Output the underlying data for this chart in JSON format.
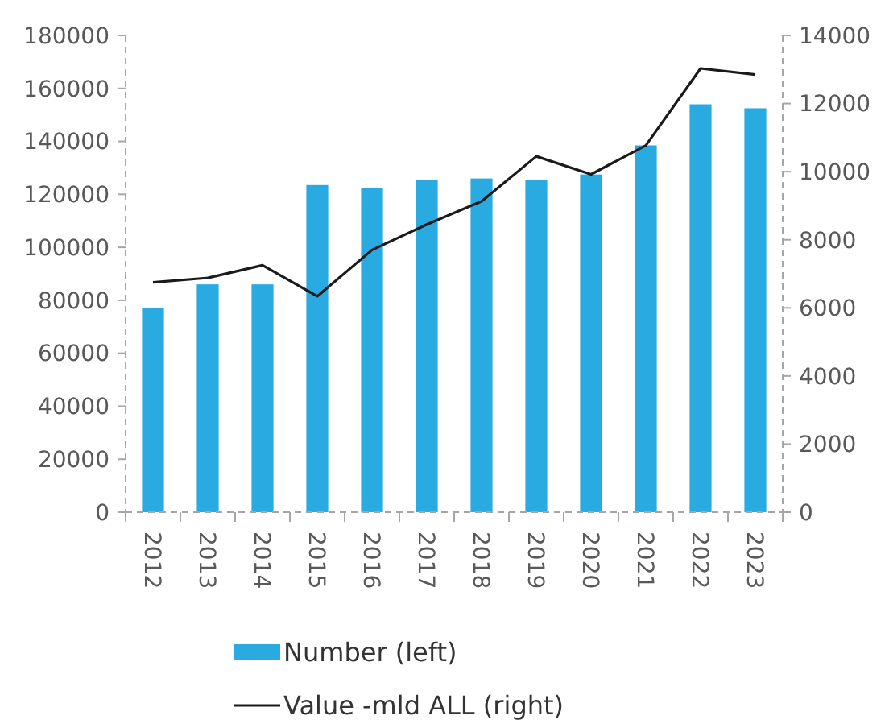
{
  "chart_data": {
    "type": "bar",
    "categories": [
      "2012",
      "2013",
      "2014",
      "2015",
      "2016",
      "2017",
      "2018",
      "2019",
      "2020",
      "2021",
      "2022",
      "2023"
    ],
    "series": [
      {
        "name": "Number (left)",
        "color": "#29abe2",
        "values": [
          77000,
          86000,
          86000,
          123500,
          122500,
          125500,
          126000,
          125500,
          127500,
          138500,
          154000,
          152500
        ]
      },
      {
        "name": "Value -mld ALL (right)",
        "type": "line",
        "axis": "y2",
        "color": "#1a1a1a",
        "values": [
          6750,
          6880,
          7250,
          6340,
          7700,
          8450,
          9130,
          10450,
          9920,
          10770,
          13030,
          12850
        ]
      }
    ],
    "ylim": [
      0,
      180000
    ],
    "yticks": [
      0,
      20000,
      40000,
      60000,
      80000,
      100000,
      120000,
      140000,
      160000,
      180000
    ],
    "y2lim": [
      0,
      14000
    ],
    "y2ticks": [
      0,
      2000,
      4000,
      6000,
      8000,
      10000,
      12000,
      14000
    ],
    "grid": false,
    "legend": "bottom",
    "marker": "none",
    "line_style": "solid"
  }
}
